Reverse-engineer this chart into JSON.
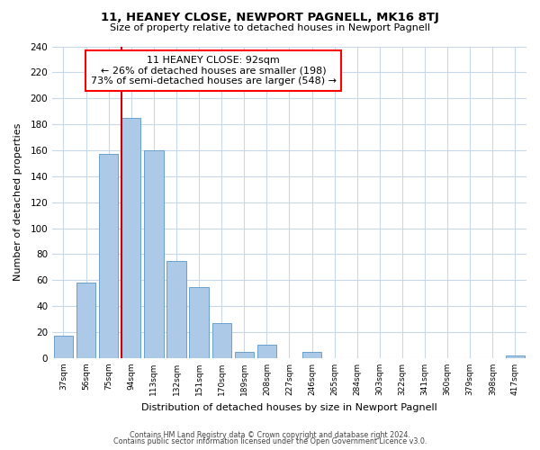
{
  "title": "11, HEANEY CLOSE, NEWPORT PAGNELL, MK16 8TJ",
  "subtitle": "Size of property relative to detached houses in Newport Pagnell",
  "xlabel": "Distribution of detached houses by size in Newport Pagnell",
  "ylabel": "Number of detached properties",
  "bar_color": "#adc9e8",
  "bar_edge_color": "#6aa0cc",
  "categories": [
    "37sqm",
    "56sqm",
    "75sqm",
    "94sqm",
    "113sqm",
    "132sqm",
    "151sqm",
    "170sqm",
    "189sqm",
    "208sqm",
    "227sqm",
    "246sqm",
    "265sqm",
    "284sqm",
    "303sqm",
    "322sqm",
    "341sqm",
    "360sqm",
    "379sqm",
    "398sqm",
    "417sqm"
  ],
  "values": [
    17,
    58,
    157,
    185,
    160,
    75,
    55,
    27,
    5,
    10,
    0,
    5,
    0,
    0,
    0,
    0,
    0,
    0,
    0,
    0,
    2
  ],
  "ylim": [
    0,
    240
  ],
  "yticks": [
    0,
    20,
    40,
    60,
    80,
    100,
    120,
    140,
    160,
    180,
    200,
    220,
    240
  ],
  "vline_index": 3,
  "ann_line1": "11 HEANEY CLOSE: 92sqm",
  "ann_line2": "← 26% of detached houses are smaller (198)",
  "ann_line3": "73% of semi-detached houses are larger (548) →",
  "footer_line1": "Contains HM Land Registry data © Crown copyright and database right 2024.",
  "footer_line2": "Contains public sector information licensed under the Open Government Licence v3.0.",
  "background_color": "#ffffff",
  "grid_color": "#c8d8e8",
  "vline_color": "#cc0000"
}
